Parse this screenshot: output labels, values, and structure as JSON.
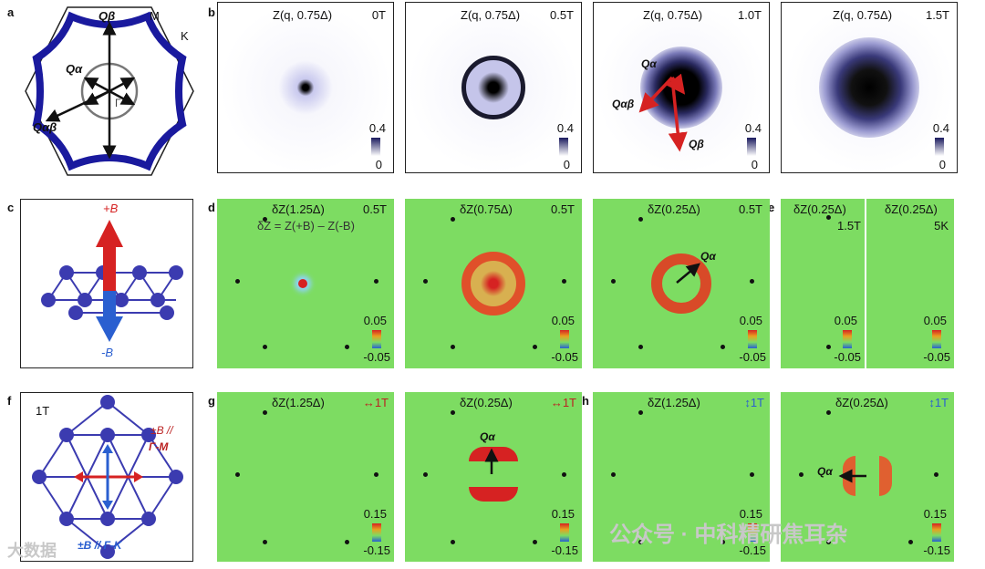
{
  "panel_letters": {
    "a": "a",
    "b": "b",
    "c": "c",
    "d": "d",
    "e": "e",
    "f": "f",
    "g": "g",
    "h": "h"
  },
  "panel_a": {
    "Q_beta": "Qβ",
    "M": "M",
    "K": "K",
    "Q_alpha": "Qα",
    "Gamma": "Γ",
    "Q_alphabeta": "Qαβ"
  },
  "row1": [
    {
      "title": "Z(q, 0.75Δ)",
      "field": "0T",
      "cmax": "0.4",
      "cmin": "0"
    },
    {
      "title": "Z(q, 0.75Δ)",
      "field": "0.5T",
      "cmax": "0.4",
      "cmin": "0"
    },
    {
      "title": "Z(q, 0.75Δ)",
      "field": "1.0T",
      "cmax": "0.4",
      "cmin": "0",
      "ann_alpha": "Qα",
      "ann_alphabeta": "Qαβ",
      "ann_beta": "Qβ"
    },
    {
      "title": "Z(q, 0.75Δ)",
      "field": "1.5T",
      "cmax": "0.4",
      "cmin": "0"
    }
  ],
  "panel_c": {
    "plusB": "+B",
    "minusB": "-B"
  },
  "row2": [
    {
      "title": "δZ(1.25Δ)",
      "field": "0.5T",
      "cmax": "0.05",
      "cmin": "-0.05",
      "formula": "δZ = Z(+B) – Z(-B)"
    },
    {
      "title": "δZ(0.75Δ)",
      "field": "0.5T",
      "cmax": "0.05",
      "cmin": "-0.05"
    },
    {
      "title": "δZ(0.25Δ)",
      "field": "0.5T",
      "cmax": "0.05",
      "cmin": "-0.05",
      "ann_alpha": "Qα"
    },
    {
      "title": "δZ(0.25Δ)",
      "field": "1.5T",
      "cmax": "0.05",
      "cmin": "-0.05"
    },
    {
      "title": "δZ(0.25Δ)",
      "field": "5K",
      "cmax": "0.05",
      "cmin": "-0.05"
    }
  ],
  "panel_f": {
    "field": "1T",
    "parallel_top": "±B //",
    "gamma_m": "Γ-M",
    "bottom": "±B // Γ-K"
  },
  "row3": [
    {
      "title": "δZ(1.25Δ)",
      "field": "1T",
      "cmax": "0.15",
      "cmin": "-0.15"
    },
    {
      "title": "δZ(0.25Δ)",
      "field": "1T",
      "cmax": "0.15",
      "cmin": "-0.15",
      "ann_alpha": "Qα"
    },
    {
      "title": "δZ(1.25Δ)",
      "field": "1T",
      "cmax": "0.15",
      "cmin": "-0.15"
    },
    {
      "title": "δZ(0.25Δ)",
      "field": "1T",
      "cmax": "0.15",
      "cmin": "-0.15",
      "ann_alpha": "Qα"
    }
  ],
  "watermark": {
    "left": "大数据",
    "right": "公众号 · 中科精研焦耳杂"
  },
  "colors": {
    "blue": "#1a1a9e",
    "red": "#d62222",
    "green": "#7ddc62",
    "arrowBlue": "#2a5fd0"
  }
}
